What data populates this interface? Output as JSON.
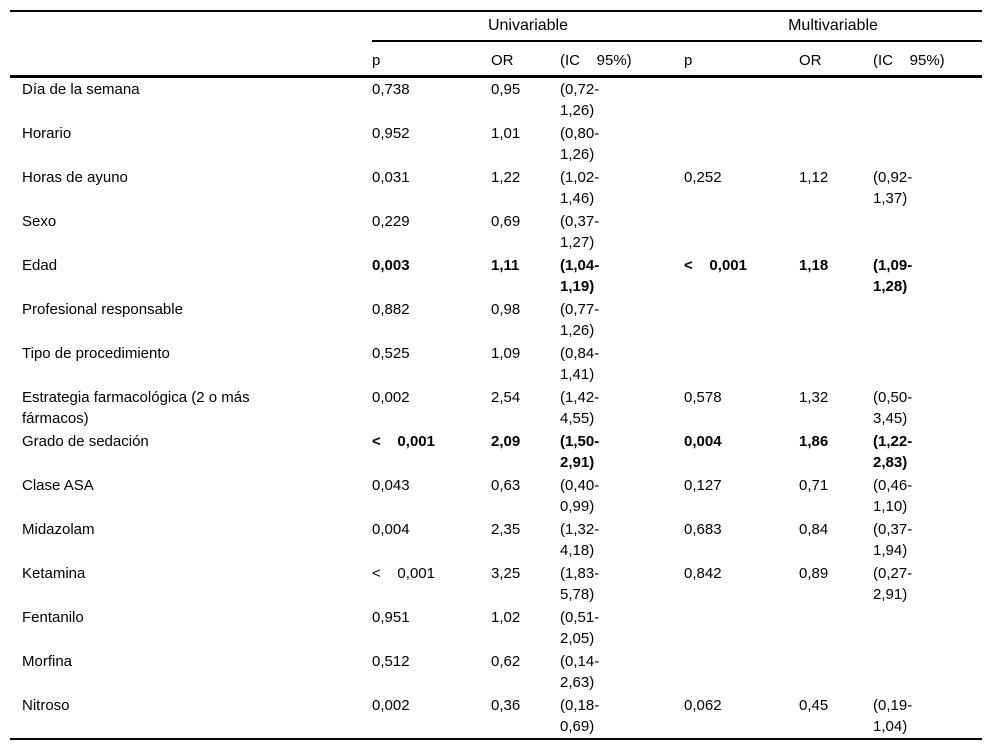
{
  "table": {
    "groups": [
      {
        "label": "Univariable"
      },
      {
        "label": "Multivariable"
      }
    ],
    "columns": [
      "p",
      "OR",
      "(IC    95%)",
      "p",
      "OR",
      "(IC    95%)"
    ],
    "rows": [
      {
        "label": "Día de la semana",
        "bold": false,
        "cells": [
          "0,738",
          "0,95",
          "(0,72-\n1,26)",
          "",
          "",
          ""
        ]
      },
      {
        "label": "Horario",
        "bold": false,
        "cells": [
          "0,952",
          "1,01",
          "(0,80-\n1,26)",
          "",
          "",
          ""
        ]
      },
      {
        "label": "Horas de ayuno",
        "bold": false,
        "cells": [
          "0,031",
          "1,22",
          "(1,02-\n1,46)",
          "0,252",
          "1,12",
          "(0,92-\n1,37)"
        ]
      },
      {
        "label": "Sexo",
        "bold": false,
        "cells": [
          "0,229",
          "0,69",
          "(0,37-\n1,27)",
          "",
          "",
          ""
        ]
      },
      {
        "label": "Edad",
        "bold": true,
        "cells": [
          "0,003",
          "1,11",
          "(1,04-\n1,19)",
          "<    0,001",
          "1,18",
          "(1,09-\n1,28)"
        ]
      },
      {
        "label": "Profesional responsable",
        "bold": false,
        "cells": [
          "0,882",
          "0,98",
          "(0,77-\n1,26)",
          "",
          "",
          ""
        ]
      },
      {
        "label": "Tipo de procedimiento",
        "bold": false,
        "cells": [
          "0,525",
          "1,09",
          "(0,84-\n1,41)",
          "",
          "",
          ""
        ]
      },
      {
        "label": "Estrategia farmacológica (2 o más\nfármacos)",
        "bold": false,
        "cells": [
          "0,002",
          "2,54",
          "(1,42-\n4,55)",
          "0,578",
          "1,32",
          "(0,50-\n3,45)"
        ]
      },
      {
        "label": "Grado de sedación",
        "bold": true,
        "cells": [
          "<    0,001",
          "2,09",
          "(1,50-\n2,91)",
          "0,004",
          "1,86",
          "(1,22-\n2,83)"
        ]
      },
      {
        "label": "Clase ASA",
        "bold": false,
        "cells": [
          "0,043",
          "0,63",
          "(0,40-\n0,99)",
          "0,127",
          "0,71",
          "(0,46-\n1,10)"
        ]
      },
      {
        "label": "Midazolam",
        "bold": false,
        "cells": [
          "0,004",
          "2,35",
          "(1,32-\n4,18)",
          "0,683",
          "0,84",
          "(0,37-\n1,94)"
        ]
      },
      {
        "label": "Ketamina",
        "bold": false,
        "cells": [
          "<    0,001",
          "3,25",
          "(1,83-\n5,78)",
          "0,842",
          "0,89",
          "(0,27-\n2,91)"
        ]
      },
      {
        "label": "Fentanilo",
        "bold": false,
        "cells": [
          "0,951",
          "1,02",
          "(0,51-\n2,05)",
          "",
          "",
          ""
        ]
      },
      {
        "label": "Morfina",
        "bold": false,
        "cells": [
          "0,512",
          "0,62",
          "(0,14-\n2,63)",
          "",
          "",
          ""
        ]
      },
      {
        "label": "Nitroso",
        "bold": false,
        "cells": [
          "0,002",
          "0,36",
          "(0,18-\n0,69)",
          "0,062",
          "0,45",
          "(0,19-\n1,04)"
        ]
      }
    ]
  }
}
